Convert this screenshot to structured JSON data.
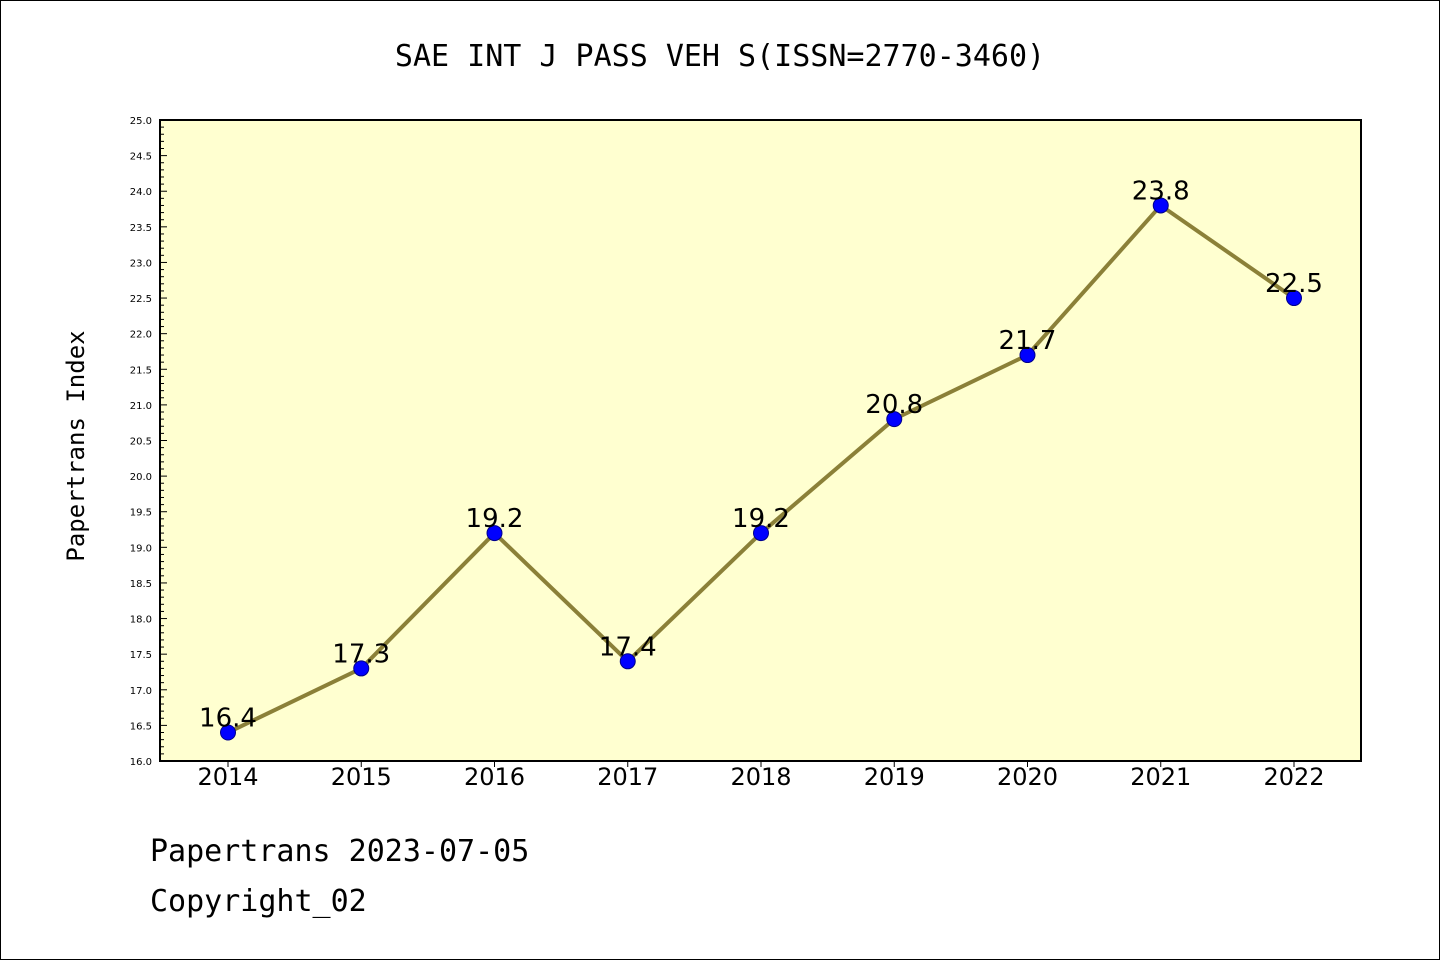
{
  "chart_data": {
    "type": "line",
    "title": "SAE INT J PASS VEH S(ISSN=2770-3460)",
    "xlabel": "",
    "ylabel": "Papertrans Index",
    "categories": [
      "2014",
      "2015",
      "2016",
      "2017",
      "2018",
      "2019",
      "2020",
      "2021",
      "2022"
    ],
    "values": [
      16.4,
      17.3,
      19.2,
      17.4,
      19.2,
      20.8,
      21.7,
      23.8,
      22.5
    ],
    "data_labels": [
      "16.4",
      "17.3",
      "19.2",
      "17.4",
      "19.2",
      "20.8",
      "21.7",
      "23.8",
      "22.5"
    ],
    "ylim": [
      16.0,
      25.0
    ],
    "yticks": [
      "16.0",
      "16.5",
      "17.0",
      "17.5",
      "18.0",
      "18.5",
      "19.0",
      "19.5",
      "20.0",
      "20.5",
      "21.0",
      "21.5",
      "22.0",
      "22.5",
      "23.0",
      "23.5",
      "24.0",
      "24.5",
      "25.0"
    ],
    "grid": false,
    "legend": "none",
    "colors": {
      "plot_background": "#ffffd0",
      "line": "#8b8038",
      "marker_fill": "#0000ff",
      "marker_edge": "#00008b",
      "axis": "#000000"
    }
  },
  "footer": {
    "line1": "Papertrans 2023-07-05",
    "line2": "Copyright_02"
  }
}
